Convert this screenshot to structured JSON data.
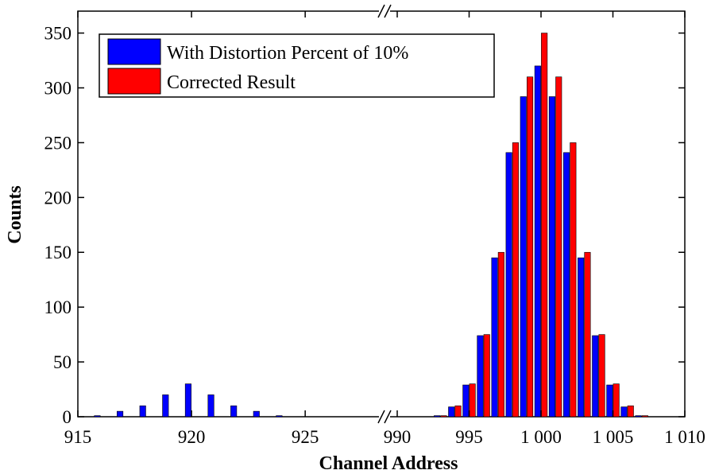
{
  "chart_data": {
    "type": "bar",
    "xlabel": "Channel Address",
    "ylabel": "Counts",
    "ylim": [
      0,
      370
    ],
    "y_ticks": [
      0,
      50,
      100,
      150,
      200,
      250,
      300,
      350
    ],
    "x_segments": [
      {
        "xlim": [
          915,
          928
        ],
        "ticks": [
          915,
          920,
          925
        ],
        "tick_labels": [
          "915",
          "920",
          "925"
        ]
      },
      {
        "xlim": [
          990,
          1010
        ],
        "ticks": [
          990,
          995,
          1000,
          1005,
          1010
        ],
        "tick_labels": [
          "990",
          "995",
          "1 000",
          "1 005",
          "1 010"
        ]
      }
    ],
    "axis_break": "//",
    "legend": "top-left",
    "grid": false,
    "series": [
      {
        "name": "With Distortion Percent of 10%",
        "color": "#0000ff",
        "points": [
          [
            916,
            1
          ],
          [
            917,
            5
          ],
          [
            918,
            10
          ],
          [
            919,
            20
          ],
          [
            920,
            30
          ],
          [
            921,
            20
          ],
          [
            922,
            10
          ],
          [
            923,
            5
          ],
          [
            924,
            1
          ],
          [
            993,
            1
          ],
          [
            994,
            9
          ],
          [
            995,
            29
          ],
          [
            996,
            74
          ],
          [
            997,
            145
          ],
          [
            998,
            241
          ],
          [
            999,
            292
          ],
          [
            1000,
            320
          ],
          [
            1001,
            292
          ],
          [
            1002,
            241
          ],
          [
            1003,
            145
          ],
          [
            1004,
            74
          ],
          [
            1005,
            29
          ],
          [
            1006,
            9
          ],
          [
            1007,
            1
          ]
        ]
      },
      {
        "name": "Corrected Result",
        "color": "#ff0000",
        "points": [
          [
            993,
            1
          ],
          [
            994,
            10
          ],
          [
            995,
            30
          ],
          [
            996,
            75
          ],
          [
            997,
            150
          ],
          [
            998,
            250
          ],
          [
            999,
            310
          ],
          [
            1000,
            350
          ],
          [
            1001,
            310
          ],
          [
            1002,
            250
          ],
          [
            1003,
            150
          ],
          [
            1004,
            75
          ],
          [
            1005,
            30
          ],
          [
            1006,
            10
          ],
          [
            1007,
            1
          ]
        ]
      }
    ]
  }
}
